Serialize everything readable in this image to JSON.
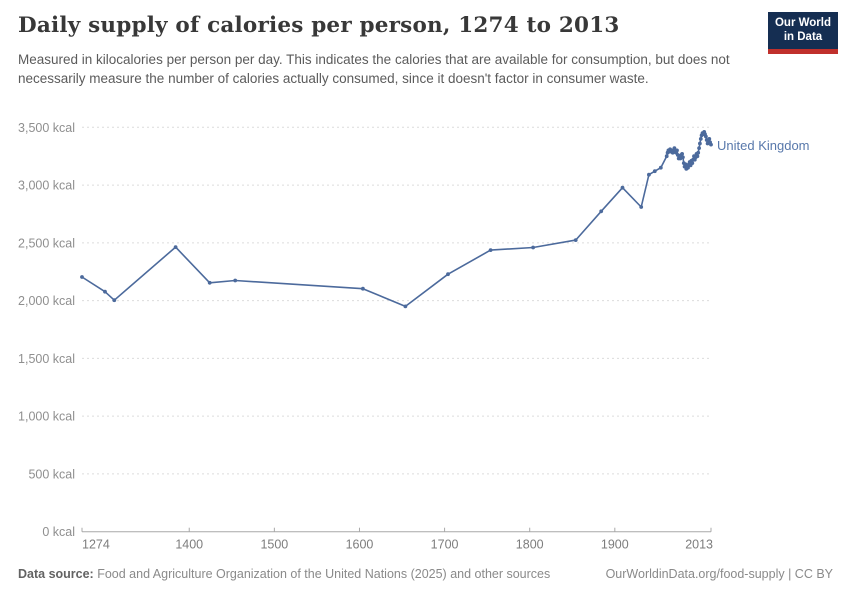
{
  "header": {
    "title": "Daily supply of calories per person, 1274 to 2013",
    "subtitle": "Measured in kilocalories per person per day. This indicates the calories that are available for consumption, but does not necessarily measure the number of calories actually consumed, since it doesn't factor in consumer waste.",
    "logo": {
      "line1": "Our World",
      "line2": "in Data",
      "bg_color": "#152e52",
      "accent_color": "#c0302c"
    }
  },
  "footer": {
    "source_label": "Data source:",
    "source_text": " Food and Agriculture Organization of the United Nations (2025) and other sources",
    "link_text": "OurWorldinData.org/food-supply | CC BY"
  },
  "chart_data": {
    "type": "line",
    "title": "Daily supply of calories per person, 1274 to 2013",
    "entity_label": "United Kingdom",
    "unit": "kcal",
    "xlabel": "",
    "ylabel": "",
    "xlim": [
      1274,
      2013
    ],
    "ylim": [
      0,
      3500
    ],
    "grid": "horizontal-dashed",
    "legend_position": "end-of-line",
    "line_color": "#4C6A9C",
    "gridline_color": "#dcdcdc",
    "axis_color": "#a8a8a8",
    "tick_label_color": "#8f8f8f",
    "y_ticks": [
      {
        "value": 0,
        "label": "0 kcal"
      },
      {
        "value": 500,
        "label": "500 kcal"
      },
      {
        "value": 1000,
        "label": "1,000 kcal"
      },
      {
        "value": 1500,
        "label": "1,500 kcal"
      },
      {
        "value": 2000,
        "label": "2,000 kcal"
      },
      {
        "value": 2500,
        "label": "2,500 kcal"
      },
      {
        "value": 3000,
        "label": "3,000 kcal"
      },
      {
        "value": 3500,
        "label": "3,500 kcal"
      }
    ],
    "x_ticks": [
      {
        "value": 1274,
        "label": "1274"
      },
      {
        "value": 1400,
        "label": "1400"
      },
      {
        "value": 1500,
        "label": "1500"
      },
      {
        "value": 1600,
        "label": "1600"
      },
      {
        "value": 1700,
        "label": "1700"
      },
      {
        "value": 1800,
        "label": "1800"
      },
      {
        "value": 1900,
        "label": "1900"
      },
      {
        "value": 2013,
        "label": "2013"
      }
    ],
    "series": [
      {
        "name": "United Kingdom",
        "points": [
          [
            1274,
            2204
          ],
          [
            1301,
            2077
          ],
          [
            1312,
            2004
          ],
          [
            1384,
            2463
          ],
          [
            1424,
            2154
          ],
          [
            1454,
            2174
          ],
          [
            1604,
            2103
          ],
          [
            1654,
            1950
          ],
          [
            1704,
            2229
          ],
          [
            1754,
            2437
          ],
          [
            1804,
            2460
          ],
          [
            1854,
            2524
          ],
          [
            1884,
            2773
          ],
          [
            1909,
            2977
          ],
          [
            1931,
            2810
          ],
          [
            1940,
            3090
          ],
          [
            1947,
            3120
          ],
          [
            1954,
            3150
          ],
          [
            1961,
            3250
          ],
          [
            1962,
            3280
          ],
          [
            1963,
            3300
          ],
          [
            1964,
            3290
          ],
          [
            1965,
            3310
          ],
          [
            1966,
            3290
          ],
          [
            1967,
            3300
          ],
          [
            1968,
            3280
          ],
          [
            1969,
            3300
          ],
          [
            1970,
            3320
          ],
          [
            1971,
            3300
          ],
          [
            1972,
            3280
          ],
          [
            1973,
            3300
          ],
          [
            1974,
            3260
          ],
          [
            1975,
            3230
          ],
          [
            1976,
            3250
          ],
          [
            1977,
            3230
          ],
          [
            1978,
            3260
          ],
          [
            1979,
            3270
          ],
          [
            1980,
            3240
          ],
          [
            1981,
            3190
          ],
          [
            1982,
            3160
          ],
          [
            1983,
            3180
          ],
          [
            1984,
            3140
          ],
          [
            1985,
            3160
          ],
          [
            1986,
            3150
          ],
          [
            1987,
            3180
          ],
          [
            1988,
            3200
          ],
          [
            1989,
            3170
          ],
          [
            1990,
            3210
          ],
          [
            1991,
            3190
          ],
          [
            1992,
            3220
          ],
          [
            1993,
            3250
          ],
          [
            1994,
            3220
          ],
          [
            1995,
            3240
          ],
          [
            1996,
            3270
          ],
          [
            1997,
            3250
          ],
          [
            1998,
            3280
          ],
          [
            1999,
            3320
          ],
          [
            2000,
            3360
          ],
          [
            2001,
            3400
          ],
          [
            2002,
            3430
          ],
          [
            2003,
            3450
          ],
          [
            2004,
            3440
          ],
          [
            2005,
            3460
          ],
          [
            2006,
            3440
          ],
          [
            2007,
            3420
          ],
          [
            2008,
            3390
          ],
          [
            2009,
            3360
          ],
          [
            2010,
            3380
          ],
          [
            2011,
            3400
          ],
          [
            2012,
            3370
          ],
          [
            2013,
            3350
          ]
        ]
      }
    ]
  }
}
